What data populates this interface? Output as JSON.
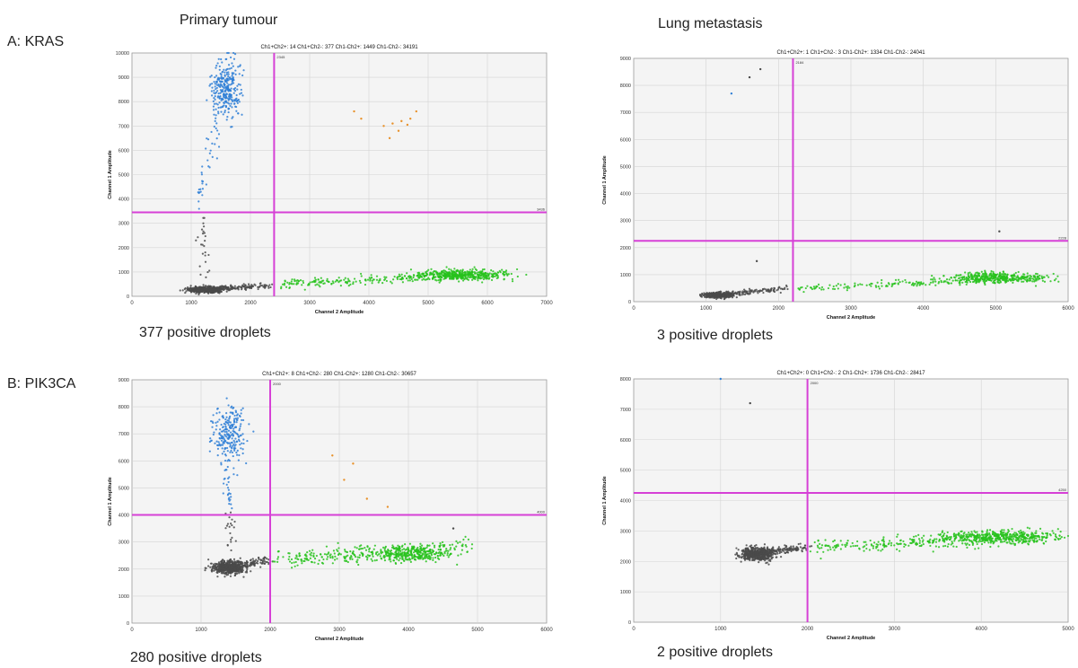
{
  "column_titles": [
    "Primary tumour",
    "Lung metastasis"
  ],
  "row_labels": [
    "A: KRAS",
    "B: PIK3CA"
  ],
  "colors": {
    "ch1_positive": "#2f7fd6",
    "ch2_positive": "#27c21c",
    "double_negative": "#4a4a4a",
    "double_positive": "#e8912a",
    "threshold": "#d640d6",
    "plot_bg": "#f4f4f4",
    "grid": "#d3d3d3"
  },
  "chart_data": [
    {
      "type": "scatter",
      "title": "Ch1+Ch2+: 14  Ch1+Ch2-: 377  Ch1-Ch2+: 1449  Ch1-Ch2-: 34191",
      "xlabel": "Channel 2 Amplitude",
      "ylabel": "Channel 1 Amplitude",
      "xlim": [
        0,
        7000
      ],
      "ylim": [
        0,
        10000
      ],
      "xticks": [
        0,
        1000,
        2000,
        3000,
        4000,
        5000,
        6000,
        7000
      ],
      "yticks": [
        0,
        1000,
        2000,
        3000,
        4000,
        5000,
        6000,
        7000,
        8000,
        9000,
        10000
      ],
      "x_threshold": 2400,
      "y_threshold": 3450,
      "x_threshold_label": "2345",
      "y_threshold_label": "3436",
      "clusters": [
        {
          "name": "Ch1-Ch2-",
          "color_key": "double_negative",
          "cx": 1250,
          "cy": 270,
          "sx": 150,
          "sy": 60,
          "n": 500
        },
        {
          "name": "Ch1-Ch2- tail",
          "color_key": "double_negative",
          "line": [
            1100,
            250,
            2300,
            450
          ],
          "n": 160,
          "jx": 40,
          "jy": 50
        },
        {
          "name": "Ch1-Ch2+",
          "color_key": "ch2_positive",
          "line": [
            2450,
            500,
            6400,
            950
          ],
          "n": 260,
          "jx": 30,
          "jy": 90
        },
        {
          "name": "Ch1-Ch2+ core",
          "color_key": "ch2_positive",
          "cx": 5500,
          "cy": 880,
          "sx": 400,
          "sy": 110,
          "n": 380
        },
        {
          "name": "Ch1+Ch2-",
          "color_key": "ch1_positive",
          "cx": 1580,
          "cy": 8500,
          "sx": 120,
          "sy": 550,
          "n": 300
        },
        {
          "name": "Ch1+Ch2- tail",
          "color_key": "ch1_positive",
          "line": [
            1450,
            7600,
            1150,
            3800
          ],
          "n": 40,
          "jx": 50,
          "jy": 250
        },
        {
          "name": "rain",
          "color_key": "double_negative",
          "line": [
            1150,
            3300,
            1250,
            900
          ],
          "n": 25,
          "jx": 50,
          "jy": 200
        }
      ],
      "points": [
        {
          "x": 3750,
          "y": 7600,
          "color_key": "double_positive"
        },
        {
          "x": 3870,
          "y": 7300,
          "color_key": "double_positive"
        },
        {
          "x": 4250,
          "y": 7000,
          "color_key": "double_positive"
        },
        {
          "x": 4400,
          "y": 7100,
          "color_key": "double_positive"
        },
        {
          "x": 4500,
          "y": 6800,
          "color_key": "double_positive"
        },
        {
          "x": 4550,
          "y": 7200,
          "color_key": "double_positive"
        },
        {
          "x": 4700,
          "y": 7300,
          "color_key": "double_positive"
        },
        {
          "x": 4800,
          "y": 7600,
          "color_key": "double_positive"
        },
        {
          "x": 4350,
          "y": 6500,
          "color_key": "double_positive"
        },
        {
          "x": 4650,
          "y": 7050,
          "color_key": "double_positive"
        }
      ],
      "caption": "377 positive droplets"
    },
    {
      "type": "scatter",
      "title": "Ch1+Ch2+: 1  Ch1+Ch2-: 3  Ch1-Ch2+: 1334  Ch1-Ch2-: 24041",
      "xlabel": "Channel 2 Amplitude",
      "ylabel": "Channel 1 Amplitude",
      "xlim": [
        0,
        6000
      ],
      "ylim": [
        0,
        9000
      ],
      "xticks": [
        0,
        1000,
        2000,
        3000,
        4000,
        5000,
        6000
      ],
      "yticks": [
        0,
        1000,
        2000,
        3000,
        4000,
        5000,
        6000,
        7000,
        8000,
        9000
      ],
      "x_threshold": 2200,
      "y_threshold": 2250,
      "x_threshold_label": "2184",
      "y_threshold_label": "2228",
      "clusters": [
        {
          "name": "Ch1-Ch2-",
          "color_key": "double_negative",
          "cx": 1150,
          "cy": 240,
          "sx": 110,
          "sy": 50,
          "n": 300
        },
        {
          "name": "Ch1-Ch2- tail",
          "color_key": "double_negative",
          "line": [
            1050,
            220,
            2100,
            480
          ],
          "n": 140,
          "jx": 40,
          "jy": 50
        },
        {
          "name": "Ch1-Ch2+",
          "color_key": "ch2_positive",
          "line": [
            2250,
            480,
            5800,
            900
          ],
          "n": 200,
          "jx": 30,
          "jy": 70
        },
        {
          "name": "Ch1-Ch2+ core",
          "color_key": "ch2_positive",
          "cx": 5000,
          "cy": 900,
          "sx": 350,
          "sy": 100,
          "n": 320
        }
      ],
      "points": [
        {
          "x": 1350,
          "y": 7700,
          "color_key": "ch1_positive"
        },
        {
          "x": 1600,
          "y": 8300,
          "color_key": "double_negative"
        },
        {
          "x": 1750,
          "y": 8600,
          "color_key": "double_negative"
        },
        {
          "x": 1700,
          "y": 1500,
          "color_key": "double_negative"
        },
        {
          "x": 5050,
          "y": 2600,
          "color_key": "double_negative"
        }
      ],
      "caption": "3 positive droplets"
    },
    {
      "type": "scatter",
      "title": "Ch1+Ch2+: 8  Ch1+Ch2-: 280  Ch1-Ch2+: 1280  Ch1-Ch2-: 30657",
      "xlabel": "Channel 2 Amplitude",
      "ylabel": "Channel 1 Amplitude",
      "xlim": [
        0,
        6000
      ],
      "ylim": [
        0,
        9000
      ],
      "xticks": [
        0,
        1000,
        2000,
        3000,
        4000,
        5000,
        6000
      ],
      "yticks": [
        0,
        1000,
        2000,
        3000,
        4000,
        5000,
        6000,
        7000,
        8000,
        9000
      ],
      "x_threshold": 2000,
      "y_threshold": 4000,
      "x_threshold_label": "2000",
      "y_threshold_label": "4000",
      "clusters": [
        {
          "name": "Ch1-Ch2-",
          "color_key": "double_negative",
          "cx": 1400,
          "cy": 2050,
          "sx": 110,
          "sy": 130,
          "n": 550
        },
        {
          "name": "Ch1-Ch2- tail",
          "color_key": "double_negative",
          "line": [
            1300,
            2000,
            2000,
            2350
          ],
          "n": 150,
          "jx": 40,
          "jy": 70
        },
        {
          "name": "Ch1-Ch2+",
          "color_key": "ch2_positive",
          "line": [
            2050,
            2350,
            4900,
            2850
          ],
          "n": 260,
          "jx": 30,
          "jy": 150
        },
        {
          "name": "Ch1-Ch2+ core",
          "color_key": "ch2_positive",
          "cx": 4000,
          "cy": 2550,
          "sx": 300,
          "sy": 140,
          "n": 300
        },
        {
          "name": "Ch1+Ch2-",
          "color_key": "ch1_positive",
          "cx": 1400,
          "cy": 6950,
          "sx": 110,
          "sy": 500,
          "n": 240
        },
        {
          "name": "Ch1+Ch2- tail",
          "color_key": "ch1_positive",
          "line": [
            1350,
            5800,
            1420,
            4100
          ],
          "n": 25,
          "jx": 40,
          "jy": 120
        },
        {
          "name": "rain",
          "color_key": "double_negative",
          "line": [
            1400,
            4000,
            1450,
            2700
          ],
          "n": 20,
          "jx": 40,
          "jy": 120
        }
      ],
      "points": [
        {
          "x": 2900,
          "y": 6200,
          "color_key": "double_positive"
        },
        {
          "x": 3070,
          "y": 5300,
          "color_key": "double_positive"
        },
        {
          "x": 3200,
          "y": 5900,
          "color_key": "double_positive"
        },
        {
          "x": 3700,
          "y": 4300,
          "color_key": "double_positive"
        },
        {
          "x": 3400,
          "y": 4600,
          "color_key": "double_positive"
        },
        {
          "x": 4650,
          "y": 3500,
          "color_key": "double_negative"
        }
      ],
      "caption": "280 positive droplets"
    },
    {
      "type": "scatter",
      "title": "Ch1+Ch2+: 0  Ch1+Ch2-: 2  Ch1-Ch2+: 1736  Ch1-Ch2-: 28417",
      "xlabel": "Channel 2 Amplitude",
      "ylabel": "Channel 1 Amplitude",
      "xlim": [
        0,
        5000
      ],
      "ylim": [
        0,
        8000
      ],
      "xticks": [
        0,
        1000,
        2000,
        3000,
        4000,
        5000
      ],
      "yticks": [
        0,
        1000,
        2000,
        3000,
        4000,
        5000,
        6000,
        7000,
        8000
      ],
      "x_threshold": 2000,
      "y_threshold": 4250,
      "x_threshold_label": "2000",
      "y_threshold_label": "4250",
      "clusters": [
        {
          "name": "Ch1-Ch2-",
          "color_key": "double_negative",
          "cx": 1420,
          "cy": 2250,
          "sx": 100,
          "sy": 110,
          "n": 500
        },
        {
          "name": "Ch1-Ch2- tail",
          "color_key": "double_negative",
          "line": [
            1500,
            2300,
            2000,
            2450
          ],
          "n": 110,
          "jx": 30,
          "jy": 60
        },
        {
          "name": "Ch1-Ch2+",
          "color_key": "ch2_positive",
          "line": [
            2050,
            2450,
            4900,
            2850
          ],
          "n": 300,
          "jx": 30,
          "jy": 120
        },
        {
          "name": "Ch1-Ch2+ core",
          "color_key": "ch2_positive",
          "cx": 4200,
          "cy": 2800,
          "sx": 320,
          "sy": 100,
          "n": 380
        }
      ],
      "points": [
        {
          "x": 1340,
          "y": 7200,
          "color_key": "double_negative"
        },
        {
          "x": 1000,
          "y": 8000,
          "color_key": "ch1_positive"
        }
      ],
      "caption": "2 positive droplets"
    }
  ]
}
